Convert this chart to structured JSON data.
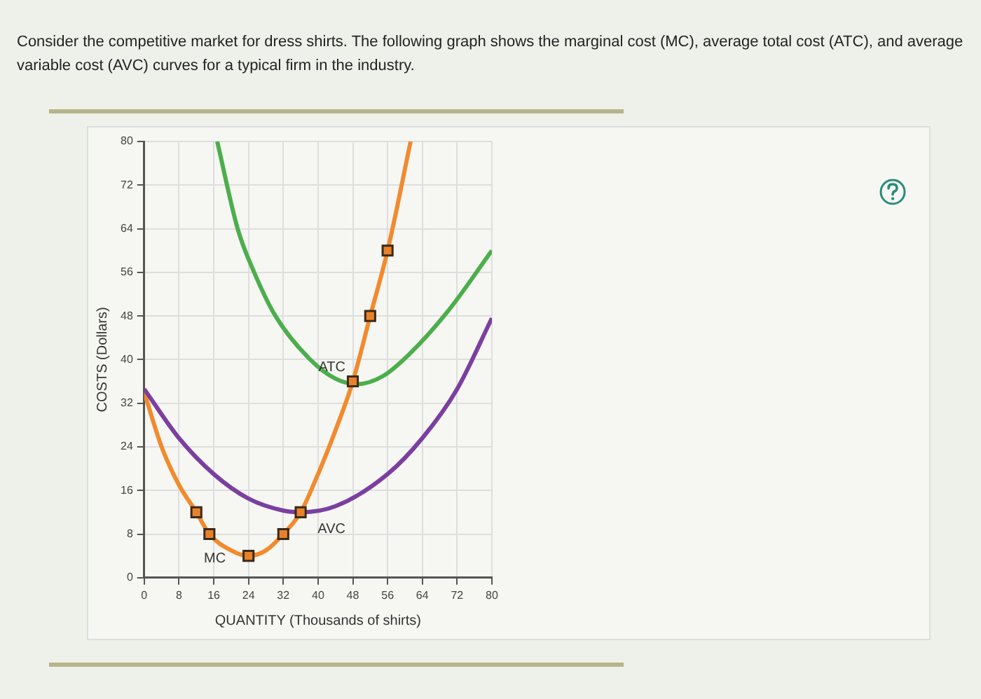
{
  "chart_data": {
    "type": "line",
    "title": "Consider the competitive market for dress shirts. The following graph shows the marginal cost (MC), average total cost (ATC), and average variable cost (AVC) curves for a typical firm in the industry.",
    "xlabel": "QUANTITY (Thousands of shirts)",
    "ylabel": "COSTS (Dollars)",
    "series": [
      {
        "name": "ATC",
        "color": "#4cae4c",
        "x": [
          16.8,
          21.5,
          25.3,
          30.2,
          38.2,
          44,
          49,
          55,
          61,
          70,
          80
        ],
        "values": [
          80,
          64,
          56,
          48,
          40,
          36.5,
          35.5,
          37,
          41,
          49,
          60
        ]
      },
      {
        "name": "AVC",
        "color": "#7b3fa0",
        "x": [
          0,
          8,
          16,
          24,
          32,
          36,
          44,
          56,
          64,
          72,
          80
        ],
        "values": [
          34.6,
          25.6,
          19,
          14.5,
          12.3,
          12,
          13.1,
          19,
          25.6,
          34.6,
          47.6
        ]
      },
      {
        "name": "MC",
        "color": "#f28a2e",
        "x": [
          0,
          4,
          8,
          12,
          15,
          20,
          24,
          28,
          32,
          36,
          40,
          44,
          48,
          52,
          56,
          61.3
        ],
        "values": [
          34,
          24,
          17,
          12,
          8,
          5,
          4,
          5,
          8,
          12,
          19,
          27,
          36,
          48,
          60,
          80
        ]
      },
      {
        "type": "scatter",
        "color": "#e8822a",
        "marker": "square",
        "x": [
          12,
          15,
          24,
          32,
          36,
          48,
          52,
          56
        ],
        "values": [
          12,
          8,
          4,
          8,
          12,
          36,
          48,
          60
        ]
      }
    ],
    "xlim": [
      0,
      80
    ],
    "xticks": [
      0,
      8,
      16,
      24,
      32,
      40,
      48,
      56,
      64,
      72,
      80
    ],
    "ylim": [
      0,
      80
    ],
    "yticks": [
      0,
      8,
      16,
      24,
      32,
      40,
      48,
      56,
      64,
      72,
      80
    ],
    "grid": true,
    "legend": false
  }
}
